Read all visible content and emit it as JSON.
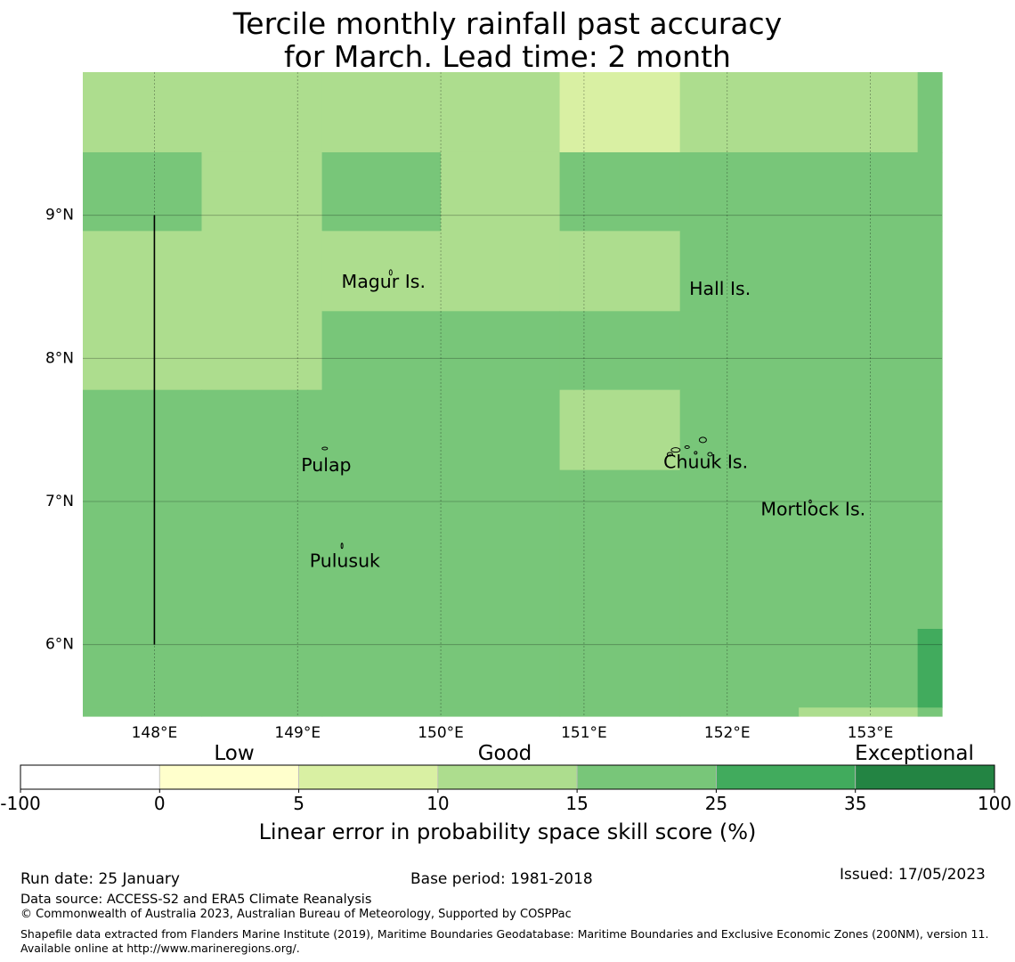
{
  "title_line1": "Tercile monthly rainfall past accuracy",
  "title_line2": "for March. Lead time: 2 month",
  "map": {
    "lon_range": [
      147.5,
      153.5
    ],
    "lat_range": [
      5.5,
      10.0
    ],
    "x_ticks": [
      "148°E",
      "149°E",
      "150°E",
      "151°E",
      "152°E",
      "153°E"
    ],
    "x_tick_values": [
      148,
      149,
      150,
      151,
      152,
      153
    ],
    "y_ticks": [
      "9°N",
      "8°N",
      "7°N",
      "6°N"
    ],
    "y_tick_values": [
      9,
      8,
      7,
      6
    ],
    "grid_lon_edges": [
      147.5,
      148.33,
      149.17,
      150.0,
      150.83,
      151.67,
      152.5,
      153.33,
      153.5
    ],
    "grid_lat_edges": [
      10.0,
      9.44,
      8.89,
      8.33,
      7.78,
      7.22,
      6.67,
      6.11,
      5.56,
      5.5
    ],
    "cells": [
      [
        "c10",
        "c10",
        "c10",
        "c10",
        "c5",
        "c10",
        "c10",
        "c15"
      ],
      [
        "c15",
        "c10",
        "c15",
        "c10",
        "c15",
        "c15",
        "c15",
        "c15"
      ],
      [
        "c10",
        "c10",
        "c10",
        "c10",
        "c10",
        "c15",
        "c15",
        "c15"
      ],
      [
        "c10",
        "c10",
        "c15",
        "c15",
        "c15",
        "c15",
        "c15",
        "c15"
      ],
      [
        "c15",
        "c15",
        "c15",
        "c15",
        "c10",
        "c15",
        "c15",
        "c15"
      ],
      [
        "c15",
        "c15",
        "c15",
        "c15",
        "c15",
        "c15",
        "c15",
        "c15"
      ],
      [
        "c15",
        "c15",
        "c15",
        "c15",
        "c15",
        "c15",
        "c15",
        "c15"
      ],
      [
        "c15",
        "c15",
        "c15",
        "c15",
        "c15",
        "c15",
        "c15",
        "c25"
      ],
      [
        "c15",
        "c15",
        "c15",
        "c15",
        "c15",
        "c15",
        "c10",
        "c15"
      ]
    ],
    "cell_colors": {
      "c5": "#d9f0a3",
      "c10": "#addd8e",
      "c15": "#78c679",
      "c25": "#41ab5d"
    },
    "boundary_line": {
      "lon": 148.0,
      "lat_from": 6.0,
      "lat_to": 9.0
    },
    "places": [
      {
        "name": "Magur Is.",
        "lon": 149.6,
        "lat": 8.53
      },
      {
        "name": "Hall Is.",
        "lon": 151.95,
        "lat": 8.48
      },
      {
        "name": "Pulap",
        "lon": 149.2,
        "lat": 7.25
      },
      {
        "name": "Chuuk Is.",
        "lon": 151.85,
        "lat": 7.27
      },
      {
        "name": "Mortlock Is.",
        "lon": 152.6,
        "lat": 6.94
      },
      {
        "name": "Pulusuk",
        "lon": 149.33,
        "lat": 6.58
      }
    ]
  },
  "legend": {
    "category_labels": [
      "Low",
      "Good",
      "Exceptional"
    ],
    "bins": [
      {
        "from": "-100",
        "to": "0",
        "color": "#ffffff"
      },
      {
        "from": "0",
        "to": "5",
        "color": "#ffffcc"
      },
      {
        "from": "5",
        "to": "10",
        "color": "#d9f0a3"
      },
      {
        "from": "10",
        "to": "15",
        "color": "#addd8e"
      },
      {
        "from": "15",
        "to": "25",
        "color": "#78c679"
      },
      {
        "from": "25",
        "to": "35",
        "color": "#41ab5d"
      },
      {
        "from": "35",
        "to": "100",
        "color": "#238443"
      }
    ],
    "tick_labels": [
      "-100",
      "0",
      "5",
      "10",
      "15",
      "25",
      "35",
      "100"
    ],
    "axis_label": "Linear error in probability space skill score (%)"
  },
  "footer": {
    "run_date": "Run date: 25 January",
    "base_period": "Base period: 1981-2018",
    "issued": "Issued: 17/05/2023",
    "data_source": "Data source: ACCESS-S2 and ERA5 Climate Reanalysis",
    "copyright": "© Commonwealth of Australia 2023, Australian Bureau of Meteorology, Supported by COSPPac",
    "shapefile": "Shapefile data extracted from Flanders Marine Institute (2019), Maritime Boundaries Geodatabase: Maritime Boundaries and Exclusive Economic Zones (200NM), version 11. Available online at http://www.marineregions.org/."
  }
}
